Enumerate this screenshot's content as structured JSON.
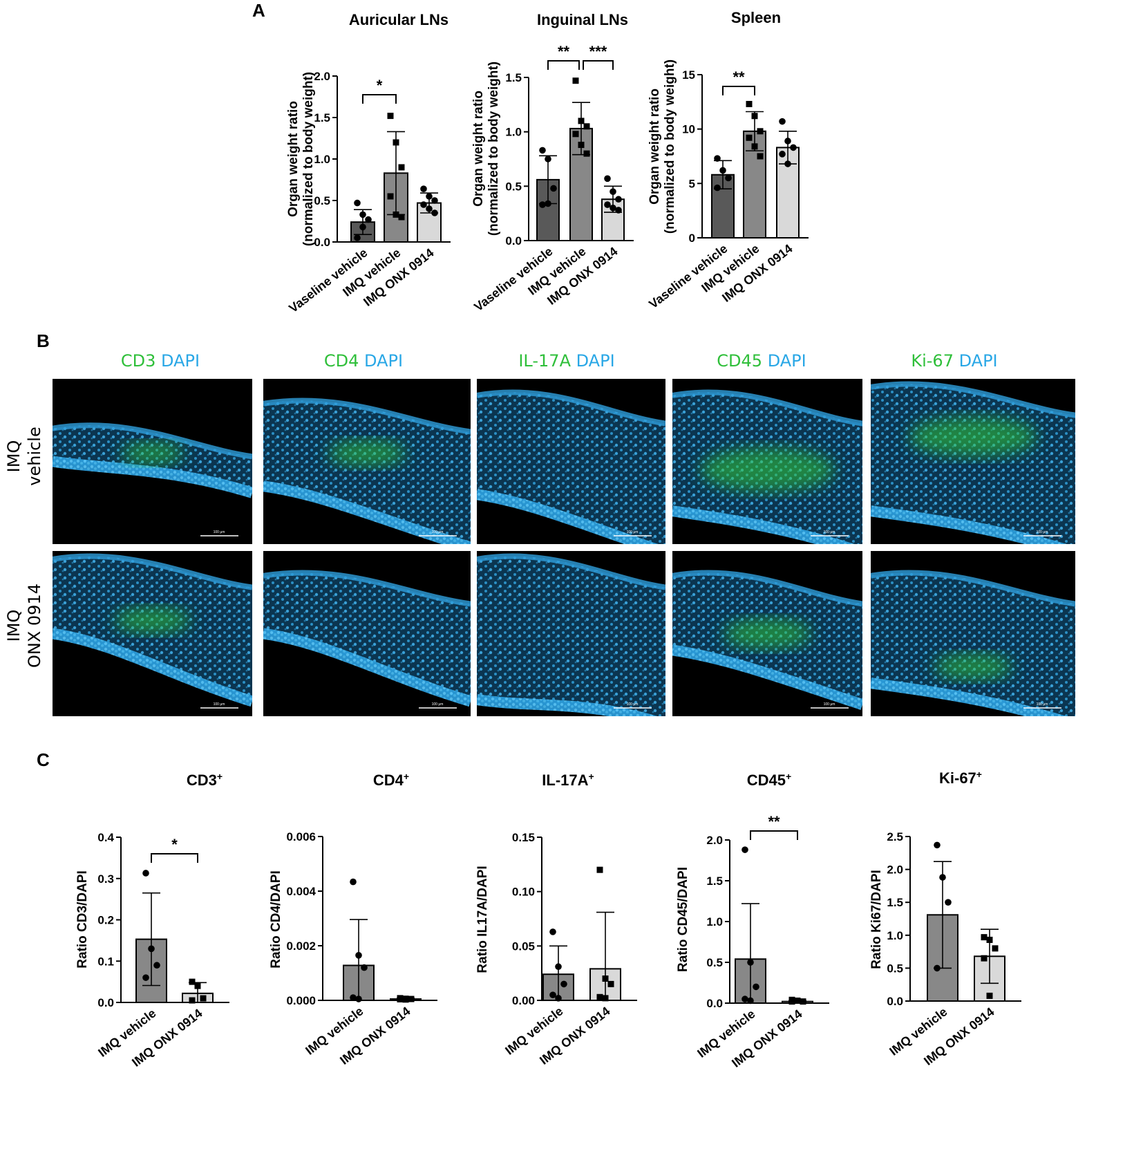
{
  "panels": {
    "a": "A",
    "b": "B",
    "c": "C"
  },
  "colors": {
    "vaseline_bar": "#595959",
    "imq_vehicle_bar": "#888888",
    "imq_onx_bar": "#d9d9d9",
    "marker_green": "#2fbf3a",
    "dapi_blue": "#29a7e6"
  },
  "chart_data": [
    {
      "type": "bar",
      "title": "Auricular LNs",
      "ylabel": "Organ weight ratio\n(normalized to  body weight)",
      "categories": [
        "Vaseline vehicle",
        "IMQ vehicle",
        "IMQ ONX 0914"
      ],
      "ylim": [
        0,
        2.0
      ],
      "yticks": [
        "0.0",
        "0.5",
        "1.0",
        "1.5",
        "2.0"
      ],
      "series": [
        {
          "values": [
            0.24,
            0.83,
            0.47
          ],
          "errors": [
            0.15,
            0.5,
            0.12
          ],
          "points": [
            [
              0.47,
              0.33,
              0.27,
              0.05,
              0.18
            ],
            [
              1.52,
              1.2,
              0.9,
              0.55,
              0.33,
              0.3
            ],
            [
              0.64,
              0.55,
              0.5,
              0.45,
              0.4,
              0.35
            ]
          ]
        }
      ],
      "significance": [
        {
          "from": 0,
          "to": 1,
          "label": "*"
        }
      ]
    },
    {
      "type": "bar",
      "title": "Inguinal LNs",
      "ylabel": "Organ weight ratio\n(normalized to  body weight)",
      "categories": [
        "Vaseline vehicle",
        "IMQ vehicle",
        "IMQ ONX 0914"
      ],
      "ylim": [
        0,
        1.5
      ],
      "yticks": [
        "0.0",
        "0.5",
        "1.0",
        "1.5"
      ],
      "series": [
        {
          "values": [
            0.56,
            1.03,
            0.38
          ],
          "errors": [
            0.22,
            0.24,
            0.12
          ],
          "points": [
            [
              0.83,
              0.75,
              0.48,
              0.33,
              0.34
            ],
            [
              1.47,
              1.1,
              1.05,
              0.98,
              0.88,
              0.8
            ],
            [
              0.57,
              0.45,
              0.38,
              0.33,
              0.3,
              0.28
            ]
          ]
        }
      ],
      "significance": [
        {
          "from": 0,
          "to": 1,
          "label": "**"
        },
        {
          "from": 1,
          "to": 2,
          "label": "***"
        }
      ]
    },
    {
      "type": "bar",
      "title": "Spleen",
      "ylabel": "Organ weight ratio\n(normalized to body weight)",
      "categories": [
        "Vaseline vehicle",
        "IMQ vehicle",
        "IMQ ONX 0914"
      ],
      "ylim": [
        0,
        15
      ],
      "yticks": [
        "0",
        "5",
        "10",
        "15"
      ],
      "series": [
        {
          "values": [
            5.8,
            9.8,
            8.3
          ],
          "errors": [
            1.3,
            1.8,
            1.5
          ],
          "points": [
            [
              7.3,
              6.2,
              5.5,
              4.6
            ],
            [
              12.3,
              11.2,
              9.8,
              9.2,
              8.4,
              7.5
            ],
            [
              10.7,
              8.9,
              8.3,
              7.7,
              6.8
            ]
          ]
        }
      ],
      "significance": [
        {
          "from": 0,
          "to": 1,
          "label": "**"
        }
      ]
    },
    {
      "type": "bar",
      "title": "CD3",
      "title_sup": "+",
      "ylabel": "Ratio CD3/DAPI",
      "categories": [
        "IMQ vehicle",
        "IMQ ONX 0914"
      ],
      "ylim": [
        0,
        0.4
      ],
      "yticks": [
        "0.0",
        "0.1",
        "0.2",
        "0.3",
        "0.4"
      ],
      "series": [
        {
          "values": [
            0.153,
            0.022
          ],
          "errors": [
            0.112,
            0.026
          ],
          "points": [
            [
              0.313,
              0.13,
              0.09,
              0.06
            ],
            [
              0.05,
              0.04,
              0.01,
              0.005
            ]
          ]
        }
      ],
      "significance": [
        {
          "from": 0,
          "to": 1,
          "label": "*"
        }
      ]
    },
    {
      "type": "bar",
      "title": "CD4",
      "title_sup": "+",
      "ylabel": "Ratio  CD4/DAPI",
      "categories": [
        "IMQ vehicle",
        "IMQ ONX 0914"
      ],
      "ylim": [
        0,
        0.006
      ],
      "yticks": [
        "0.000",
        "0.002",
        "0.004",
        "0.006"
      ],
      "series": [
        {
          "values": [
            0.00128,
            5e-05
          ],
          "errors": [
            0.00168,
            3e-05
          ],
          "points": [
            [
              0.00434,
              0.00165,
              0.0012,
              0.0001,
              5e-05
            ],
            [
              8e-05,
              6e-05,
              5e-05,
              4e-05,
              3e-05
            ]
          ]
        }
      ],
      "significance": []
    },
    {
      "type": "bar",
      "title": "IL-17A",
      "title_sup": "+",
      "ylabel": "Ratio IL17A/DAPI",
      "categories": [
        "IMQ vehicle",
        "IMQ ONX 0914"
      ],
      "ylim": [
        0,
        0.15
      ],
      "yticks": [
        "0.00",
        "0.05",
        "0.10",
        "0.15"
      ],
      "series": [
        {
          "values": [
            0.024,
            0.029
          ],
          "errors": [
            0.026,
            0.052
          ],
          "points": [
            [
              0.063,
              0.031,
              0.015,
              0.005,
              0.002
            ],
            [
              0.12,
              0.02,
              0.015,
              0.003,
              0.002
            ]
          ]
        }
      ],
      "significance": []
    },
    {
      "type": "bar",
      "title": "CD45",
      "title_sup": "+",
      "ylabel": "Ratio  CD45/DAPI",
      "categories": [
        "IMQ vehicle",
        "IMQ ONX 0914"
      ],
      "ylim": [
        0,
        2.0
      ],
      "yticks": [
        "0.0",
        "0.5",
        "1.0",
        "1.5",
        "2.0"
      ],
      "series": [
        {
          "values": [
            0.54,
            0.02
          ],
          "errors": [
            0.68,
            0.01
          ],
          "points": [
            [
              1.88,
              0.5,
              0.2,
              0.05,
              0.03
            ],
            [
              0.04,
              0.03,
              0.02,
              0.02
            ]
          ]
        }
      ],
      "significance": [
        {
          "from": 0,
          "to": 1,
          "label": "**"
        }
      ]
    },
    {
      "type": "bar",
      "title": "Ki-67",
      "title_sup": "+",
      "ylabel": "Ratio Ki67/DAPI",
      "categories": [
        "IMQ vehicle",
        "IMQ ONX 0914"
      ],
      "ylim": [
        0,
        2.5
      ],
      "yticks": [
        "0.0",
        "0.5",
        "1.0",
        "1.5",
        "2.0",
        "2.5"
      ],
      "series": [
        {
          "values": [
            1.31,
            0.68
          ],
          "errors": [
            0.81,
            0.41
          ],
          "points": [
            [
              2.37,
              1.88,
              1.5,
              0.5
            ],
            [
              0.97,
              0.93,
              0.8,
              0.65,
              0.08
            ]
          ]
        }
      ],
      "significance": []
    }
  ],
  "micrographs": {
    "columns": [
      {
        "marker": "CD3",
        "dapi": "DAPI"
      },
      {
        "marker": "CD4",
        "dapi": "DAPI"
      },
      {
        "marker": "IL-17A",
        "dapi": "DAPI"
      },
      {
        "marker": "CD45",
        "dapi": "DAPI"
      },
      {
        "marker": "Ki-67",
        "dapi": "DAPI"
      }
    ],
    "rows": [
      {
        "line1": "IMQ",
        "line2": "vehicle"
      },
      {
        "line1": "IMQ",
        "line2": "ONX 0914"
      }
    ],
    "scale_bar_label": "100 μm"
  }
}
